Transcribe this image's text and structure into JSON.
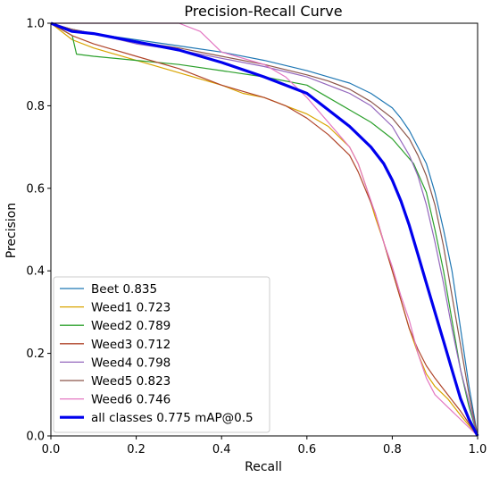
{
  "chart_data": {
    "type": "line",
    "title": "Precision-Recall Curve",
    "xlabel": "Recall",
    "ylabel": "Precision",
    "xlim": [
      0,
      1
    ],
    "ylim": [
      0,
      1
    ],
    "xticks": [
      "0.0",
      "0.2",
      "0.4",
      "0.6",
      "0.8",
      "1.0"
    ],
    "yticks": [
      "0.0",
      "0.2",
      "0.4",
      "0.6",
      "0.8",
      "1.0"
    ],
    "grid": false,
    "legend_position": "lower-left",
    "series": [
      {
        "name": "Beet 0.835",
        "color": "#1f77b4",
        "x": [
          0.0,
          0.05,
          0.1,
          0.2,
          0.3,
          0.4,
          0.5,
          0.6,
          0.65,
          0.7,
          0.75,
          0.8,
          0.82,
          0.84,
          0.86,
          0.88,
          0.9,
          0.92,
          0.94,
          0.96,
          0.98,
          1.0
        ],
        "y": [
          1.0,
          0.985,
          0.975,
          0.96,
          0.945,
          0.93,
          0.91,
          0.885,
          0.87,
          0.855,
          0.83,
          0.795,
          0.77,
          0.74,
          0.7,
          0.66,
          0.59,
          0.5,
          0.4,
          0.26,
          0.12,
          0.0
        ]
      },
      {
        "name": "Weed1 0.723",
        "color": "#d9a400",
        "x": [
          0.0,
          0.05,
          0.1,
          0.2,
          0.3,
          0.4,
          0.45,
          0.5,
          0.55,
          0.6,
          0.65,
          0.7,
          0.72,
          0.74,
          0.76,
          0.78,
          0.8,
          0.82,
          0.84,
          0.86,
          0.88,
          0.9,
          0.93,
          0.96,
          1.0
        ],
        "y": [
          1.0,
          0.96,
          0.94,
          0.91,
          0.88,
          0.85,
          0.83,
          0.82,
          0.8,
          0.78,
          0.75,
          0.7,
          0.66,
          0.6,
          0.53,
          0.47,
          0.4,
          0.33,
          0.26,
          0.2,
          0.15,
          0.12,
          0.09,
          0.05,
          0.0
        ]
      },
      {
        "name": "Weed2 0.789",
        "color": "#2ca02c",
        "x": [
          0.0,
          0.05,
          0.06,
          0.1,
          0.2,
          0.3,
          0.4,
          0.5,
          0.6,
          0.65,
          0.7,
          0.75,
          0.8,
          0.85,
          0.88,
          0.9,
          0.92,
          0.94,
          0.96,
          0.98,
          1.0
        ],
        "y": [
          1.0,
          0.97,
          0.925,
          0.92,
          0.91,
          0.9,
          0.885,
          0.87,
          0.85,
          0.82,
          0.79,
          0.76,
          0.72,
          0.66,
          0.59,
          0.5,
          0.4,
          0.28,
          0.16,
          0.07,
          0.0
        ]
      },
      {
        "name": "Weed3 0.712",
        "color": "#b0452a",
        "x": [
          0.0,
          0.05,
          0.1,
          0.2,
          0.3,
          0.4,
          0.5,
          0.55,
          0.6,
          0.65,
          0.7,
          0.72,
          0.74,
          0.76,
          0.78,
          0.8,
          0.82,
          0.84,
          0.86,
          0.88,
          0.9,
          0.93,
          0.96,
          1.0
        ],
        "y": [
          1.0,
          0.97,
          0.95,
          0.92,
          0.89,
          0.85,
          0.82,
          0.8,
          0.77,
          0.73,
          0.68,
          0.64,
          0.59,
          0.54,
          0.47,
          0.4,
          0.33,
          0.26,
          0.21,
          0.17,
          0.14,
          0.1,
          0.06,
          0.0
        ]
      },
      {
        "name": "Weed4 0.798",
        "color": "#9467bd",
        "x": [
          0.0,
          0.05,
          0.1,
          0.2,
          0.3,
          0.4,
          0.5,
          0.6,
          0.65,
          0.7,
          0.75,
          0.8,
          0.84,
          0.86,
          0.88,
          0.9,
          0.92,
          0.94,
          0.96,
          0.98,
          1.0
        ],
        "y": [
          1.0,
          0.985,
          0.975,
          0.95,
          0.935,
          0.915,
          0.895,
          0.87,
          0.85,
          0.83,
          0.8,
          0.75,
          0.68,
          0.63,
          0.56,
          0.47,
          0.37,
          0.26,
          0.16,
          0.08,
          0.0
        ]
      },
      {
        "name": "Weed5 0.823",
        "color": "#8c564b",
        "x": [
          0.0,
          0.05,
          0.1,
          0.2,
          0.3,
          0.4,
          0.5,
          0.6,
          0.65,
          0.7,
          0.75,
          0.8,
          0.84,
          0.86,
          0.88,
          0.9,
          0.92,
          0.94,
          0.96,
          0.98,
          1.0
        ],
        "y": [
          1.0,
          0.985,
          0.975,
          0.955,
          0.94,
          0.92,
          0.9,
          0.875,
          0.86,
          0.84,
          0.81,
          0.77,
          0.72,
          0.68,
          0.63,
          0.56,
          0.46,
          0.34,
          0.22,
          0.1,
          0.0
        ]
      },
      {
        "name": "Weed6 0.746",
        "color": "#e377c2",
        "x": [
          0.0,
          0.1,
          0.2,
          0.3,
          0.35,
          0.4,
          0.5,
          0.55,
          0.6,
          0.65,
          0.7,
          0.72,
          0.74,
          0.76,
          0.78,
          0.8,
          0.82,
          0.84,
          0.86,
          0.88,
          0.9,
          0.93,
          0.96,
          1.0
        ],
        "y": [
          1.0,
          1.0,
          1.0,
          1.0,
          0.98,
          0.93,
          0.9,
          0.87,
          0.82,
          0.76,
          0.7,
          0.66,
          0.6,
          0.54,
          0.47,
          0.41,
          0.34,
          0.28,
          0.2,
          0.14,
          0.1,
          0.07,
          0.04,
          0.0
        ]
      },
      {
        "name": "all classes 0.775 mAP@0.5",
        "color": "#0000ee",
        "bold": true,
        "x": [
          0.0,
          0.05,
          0.1,
          0.2,
          0.3,
          0.4,
          0.5,
          0.6,
          0.65,
          0.7,
          0.75,
          0.78,
          0.8,
          0.82,
          0.84,
          0.86,
          0.88,
          0.9,
          0.92,
          0.94,
          0.96,
          0.98,
          1.0
        ],
        "y": [
          1.0,
          0.98,
          0.975,
          0.955,
          0.935,
          0.905,
          0.87,
          0.83,
          0.79,
          0.75,
          0.7,
          0.66,
          0.62,
          0.57,
          0.51,
          0.44,
          0.37,
          0.3,
          0.23,
          0.16,
          0.09,
          0.04,
          0.0
        ]
      }
    ]
  }
}
